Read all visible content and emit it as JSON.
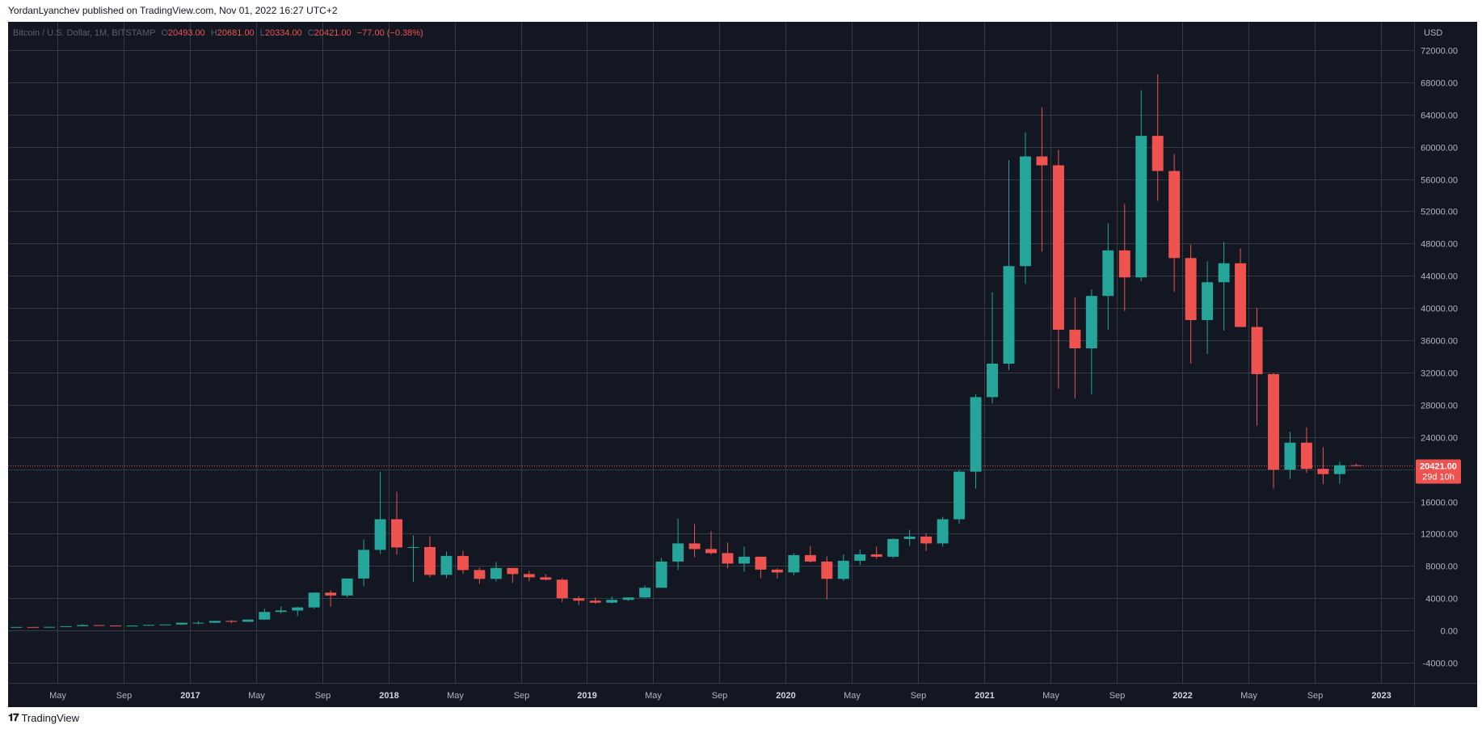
{
  "header": {
    "publisher": "YordanLyanchev",
    "published_text": "YordanLyanchev published on TradingView.com, Nov 01, 2022 16:27 UTC+2"
  },
  "footer": {
    "brand": "TradingView"
  },
  "legend": {
    "symbol": "Bitcoin / U.S. Dollar, 1M, BITSTAMP",
    "open_label": "O",
    "open": "20493.00",
    "high_label": "H",
    "high": "20681.00",
    "low_label": "L",
    "low": "20334.00",
    "close_label": "C",
    "close": "20421.00",
    "change": "−77.00 (−0.38%)"
  },
  "price_tag": {
    "price": "20421.00",
    "countdown": "29d 10h"
  },
  "colors": {
    "background": "#131722",
    "grid": "#363a45",
    "up": "#26a69a",
    "down": "#ef5350",
    "axis_text": "#b2b5be"
  },
  "chart_data": {
    "type": "candlestick",
    "title": "Bitcoin / U.S. Dollar, 1M, BITSTAMP",
    "currency_label": "USD",
    "y_ticks": [
      -4000,
      0,
      4000,
      8000,
      12000,
      16000,
      20000,
      24000,
      28000,
      32000,
      36000,
      40000,
      44000,
      48000,
      52000,
      56000,
      60000,
      64000,
      68000,
      72000
    ],
    "y_tick_labels": [
      "-4000.00",
      "0.00",
      "4000.00",
      "8000.00",
      "12000.00",
      "16000.00",
      "20000.00",
      "24000.00",
      "28000.00",
      "32000.00",
      "36000.00",
      "40000.00",
      "44000.00",
      "48000.00",
      "52000.00",
      "56000.00",
      "60000.00",
      "64000.00",
      "68000.00",
      "72000.00"
    ],
    "ylim": [
      -6500,
      75500
    ],
    "x_ticks": [
      {
        "label": "May",
        "date": "2016-05",
        "bold": false
      },
      {
        "label": "Sep",
        "date": "2016-09",
        "bold": false
      },
      {
        "label": "2017",
        "date": "2017-01",
        "bold": true
      },
      {
        "label": "May",
        "date": "2017-05",
        "bold": false
      },
      {
        "label": "Sep",
        "date": "2017-09",
        "bold": false
      },
      {
        "label": "2018",
        "date": "2018-01",
        "bold": true
      },
      {
        "label": "May",
        "date": "2018-05",
        "bold": false
      },
      {
        "label": "Sep",
        "date": "2018-09",
        "bold": false
      },
      {
        "label": "2019",
        "date": "2019-01",
        "bold": true
      },
      {
        "label": "May",
        "date": "2019-05",
        "bold": false
      },
      {
        "label": "Sep",
        "date": "2019-09",
        "bold": false
      },
      {
        "label": "2020",
        "date": "2020-01",
        "bold": true
      },
      {
        "label": "May",
        "date": "2020-05",
        "bold": false
      },
      {
        "label": "Sep",
        "date": "2020-09",
        "bold": false
      },
      {
        "label": "2021",
        "date": "2021-01",
        "bold": true
      },
      {
        "label": "May",
        "date": "2021-05",
        "bold": false
      },
      {
        "label": "Sep",
        "date": "2021-09",
        "bold": false
      },
      {
        "label": "2022",
        "date": "2022-01",
        "bold": true
      },
      {
        "label": "May",
        "date": "2022-05",
        "bold": false
      },
      {
        "label": "Sep",
        "date": "2022-09",
        "bold": false
      },
      {
        "label": "2023",
        "date": "2023-01",
        "bold": true
      }
    ],
    "x_range": [
      "2016-02",
      "2023-02"
    ],
    "last_price": 20421,
    "candles": [
      {
        "date": "2016-02",
        "o": 370,
        "h": 440,
        "l": 360,
        "c": 435
      },
      {
        "date": "2016-03",
        "o": 435,
        "h": 440,
        "l": 410,
        "c": 416
      },
      {
        "date": "2016-04",
        "o": 416,
        "h": 465,
        "l": 410,
        "c": 448
      },
      {
        "date": "2016-05",
        "o": 448,
        "h": 540,
        "l": 440,
        "c": 530
      },
      {
        "date": "2016-06",
        "o": 530,
        "h": 780,
        "l": 520,
        "c": 670
      },
      {
        "date": "2016-07",
        "o": 670,
        "h": 700,
        "l": 600,
        "c": 620
      },
      {
        "date": "2016-08",
        "o": 620,
        "h": 630,
        "l": 540,
        "c": 575
      },
      {
        "date": "2016-09",
        "o": 575,
        "h": 620,
        "l": 570,
        "c": 610
      },
      {
        "date": "2016-10",
        "o": 610,
        "h": 720,
        "l": 600,
        "c": 700
      },
      {
        "date": "2016-11",
        "o": 700,
        "h": 760,
        "l": 690,
        "c": 745
      },
      {
        "date": "2016-12",
        "o": 745,
        "h": 980,
        "l": 740,
        "c": 960
      },
      {
        "date": "2017-01",
        "o": 960,
        "h": 1150,
        "l": 750,
        "c": 965
      },
      {
        "date": "2017-02",
        "o": 965,
        "h": 1200,
        "l": 920,
        "c": 1190
      },
      {
        "date": "2017-03",
        "o": 1190,
        "h": 1300,
        "l": 900,
        "c": 1080
      },
      {
        "date": "2017-04",
        "o": 1080,
        "h": 1400,
        "l": 1070,
        "c": 1350
      },
      {
        "date": "2017-05",
        "o": 1350,
        "h": 2700,
        "l": 1340,
        "c": 2300
      },
      {
        "date": "2017-06",
        "o": 2300,
        "h": 3000,
        "l": 2100,
        "c": 2480
      },
      {
        "date": "2017-07",
        "o": 2480,
        "h": 2950,
        "l": 1800,
        "c": 2860
      },
      {
        "date": "2017-08",
        "o": 2860,
        "h": 4750,
        "l": 2700,
        "c": 4700
      },
      {
        "date": "2017-09",
        "o": 4700,
        "h": 5000,
        "l": 2950,
        "c": 4340
      },
      {
        "date": "2017-10",
        "o": 4340,
        "h": 6450,
        "l": 4130,
        "c": 6450
      },
      {
        "date": "2017-11",
        "o": 6450,
        "h": 11300,
        "l": 5500,
        "c": 10000
      },
      {
        "date": "2017-12",
        "o": 10000,
        "h": 19700,
        "l": 9500,
        "c": 13800
      },
      {
        "date": "2018-01",
        "o": 13800,
        "h": 17200,
        "l": 9400,
        "c": 10300
      },
      {
        "date": "2018-02",
        "o": 10300,
        "h": 11800,
        "l": 6000,
        "c": 10350
      },
      {
        "date": "2018-03",
        "o": 10350,
        "h": 11700,
        "l": 6600,
        "c": 6900
      },
      {
        "date": "2018-04",
        "o": 6900,
        "h": 9800,
        "l": 6500,
        "c": 9250
      },
      {
        "date": "2018-05",
        "o": 9250,
        "h": 9900,
        "l": 7050,
        "c": 7500
      },
      {
        "date": "2018-06",
        "o": 7500,
        "h": 7800,
        "l": 5800,
        "c": 6400
      },
      {
        "date": "2018-07",
        "o": 6400,
        "h": 8500,
        "l": 6100,
        "c": 7750
      },
      {
        "date": "2018-08",
        "o": 7750,
        "h": 7800,
        "l": 5900,
        "c": 7000
      },
      {
        "date": "2018-09",
        "o": 7000,
        "h": 7400,
        "l": 6100,
        "c": 6600
      },
      {
        "date": "2018-10",
        "o": 6600,
        "h": 7000,
        "l": 6200,
        "c": 6300
      },
      {
        "date": "2018-11",
        "o": 6300,
        "h": 6500,
        "l": 3500,
        "c": 4000
      },
      {
        "date": "2018-12",
        "o": 4000,
        "h": 4250,
        "l": 3150,
        "c": 3700
      },
      {
        "date": "2019-01",
        "o": 3700,
        "h": 4100,
        "l": 3300,
        "c": 3450
      },
      {
        "date": "2019-02",
        "o": 3450,
        "h": 4200,
        "l": 3350,
        "c": 3800
      },
      {
        "date": "2019-03",
        "o": 3800,
        "h": 4100,
        "l": 3650,
        "c": 4100
      },
      {
        "date": "2019-04",
        "o": 4100,
        "h": 5600,
        "l": 4000,
        "c": 5300
      },
      {
        "date": "2019-05",
        "o": 5300,
        "h": 9000,
        "l": 5300,
        "c": 8550
      },
      {
        "date": "2019-06",
        "o": 8550,
        "h": 13900,
        "l": 7500,
        "c": 10800
      },
      {
        "date": "2019-07",
        "o": 10800,
        "h": 13200,
        "l": 9100,
        "c": 10100
      },
      {
        "date": "2019-08",
        "o": 10100,
        "h": 12300,
        "l": 9400,
        "c": 9600
      },
      {
        "date": "2019-09",
        "o": 9600,
        "h": 10900,
        "l": 7700,
        "c": 8300
      },
      {
        "date": "2019-10",
        "o": 8300,
        "h": 10400,
        "l": 7300,
        "c": 9150
      },
      {
        "date": "2019-11",
        "o": 9150,
        "h": 9200,
        "l": 6500,
        "c": 7550
      },
      {
        "date": "2019-12",
        "o": 7550,
        "h": 7750,
        "l": 6450,
        "c": 7200
      },
      {
        "date": "2020-01",
        "o": 7200,
        "h": 9600,
        "l": 6850,
        "c": 9350
      },
      {
        "date": "2020-02",
        "o": 9350,
        "h": 10500,
        "l": 8450,
        "c": 8550
      },
      {
        "date": "2020-03",
        "o": 8550,
        "h": 9200,
        "l": 3850,
        "c": 6400
      },
      {
        "date": "2020-04",
        "o": 6400,
        "h": 9450,
        "l": 6150,
        "c": 8650
      },
      {
        "date": "2020-05",
        "o": 8650,
        "h": 10050,
        "l": 8100,
        "c": 9450
      },
      {
        "date": "2020-06",
        "o": 9450,
        "h": 10400,
        "l": 8900,
        "c": 9150
      },
      {
        "date": "2020-07",
        "o": 9150,
        "h": 11450,
        "l": 8950,
        "c": 11350
      },
      {
        "date": "2020-08",
        "o": 11350,
        "h": 12500,
        "l": 10500,
        "c": 11650
      },
      {
        "date": "2020-09",
        "o": 11650,
        "h": 12050,
        "l": 9850,
        "c": 10800
      },
      {
        "date": "2020-10",
        "o": 10800,
        "h": 14100,
        "l": 10400,
        "c": 13800
      },
      {
        "date": "2020-11",
        "o": 13800,
        "h": 19900,
        "l": 13200,
        "c": 19700
      },
      {
        "date": "2020-12",
        "o": 19700,
        "h": 29300,
        "l": 17600,
        "c": 28950
      },
      {
        "date": "2021-01",
        "o": 28950,
        "h": 41950,
        "l": 28150,
        "c": 33100
      },
      {
        "date": "2021-02",
        "o": 33100,
        "h": 58350,
        "l": 32300,
        "c": 45200
      },
      {
        "date": "2021-03",
        "o": 45200,
        "h": 61800,
        "l": 43000,
        "c": 58800
      },
      {
        "date": "2021-04",
        "o": 58800,
        "h": 64900,
        "l": 47000,
        "c": 57700
      },
      {
        "date": "2021-05",
        "o": 57700,
        "h": 59600,
        "l": 30000,
        "c": 37300
      },
      {
        "date": "2021-06",
        "o": 37300,
        "h": 41300,
        "l": 28800,
        "c": 35000
      },
      {
        "date": "2021-07",
        "o": 35000,
        "h": 42300,
        "l": 29300,
        "c": 41500
      },
      {
        "date": "2021-08",
        "o": 41500,
        "h": 50500,
        "l": 37300,
        "c": 47150
      },
      {
        "date": "2021-09",
        "o": 47150,
        "h": 52900,
        "l": 39600,
        "c": 43800
      },
      {
        "date": "2021-10",
        "o": 43800,
        "h": 67000,
        "l": 43300,
        "c": 61350
      },
      {
        "date": "2021-11",
        "o": 61350,
        "h": 69000,
        "l": 53300,
        "c": 57000
      },
      {
        "date": "2021-12",
        "o": 57000,
        "h": 59100,
        "l": 42000,
        "c": 46200
      },
      {
        "date": "2022-01",
        "o": 46200,
        "h": 47900,
        "l": 33100,
        "c": 38500
      },
      {
        "date": "2022-02",
        "o": 38500,
        "h": 45800,
        "l": 34300,
        "c": 43200
      },
      {
        "date": "2022-03",
        "o": 43200,
        "h": 48200,
        "l": 37200,
        "c": 45550
      },
      {
        "date": "2022-04",
        "o": 45550,
        "h": 47400,
        "l": 37800,
        "c": 37650
      },
      {
        "date": "2022-05",
        "o": 37650,
        "h": 40000,
        "l": 25400,
        "c": 31800
      },
      {
        "date": "2022-06",
        "o": 31800,
        "h": 31950,
        "l": 17600,
        "c": 19950
      },
      {
        "date": "2022-07",
        "o": 19950,
        "h": 24650,
        "l": 18800,
        "c": 23300
      },
      {
        "date": "2022-08",
        "o": 23300,
        "h": 25200,
        "l": 19550,
        "c": 20050
      },
      {
        "date": "2022-09",
        "o": 20050,
        "h": 22750,
        "l": 18150,
        "c": 19400
      },
      {
        "date": "2022-10",
        "o": 19400,
        "h": 20950,
        "l": 18200,
        "c": 20500
      },
      {
        "date": "2022-11",
        "o": 20493,
        "h": 20681,
        "l": 20334,
        "c": 20421
      }
    ]
  }
}
